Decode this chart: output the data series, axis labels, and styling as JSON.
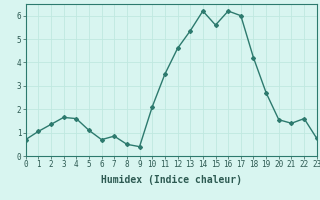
{
  "x": [
    0,
    1,
    2,
    3,
    4,
    5,
    6,
    7,
    8,
    9,
    10,
    11,
    12,
    13,
    14,
    15,
    16,
    17,
    18,
    19,
    20,
    21,
    22,
    23
  ],
  "y": [
    0.7,
    1.05,
    1.35,
    1.65,
    1.6,
    1.1,
    0.7,
    0.85,
    0.5,
    0.4,
    2.1,
    3.5,
    4.6,
    5.35,
    6.2,
    5.6,
    6.2,
    6.0,
    4.2,
    2.7,
    1.55,
    1.4,
    1.6,
    0.75
  ],
  "line_color": "#2d7a6e",
  "marker": "D",
  "marker_size": 2,
  "bg_color": "#d8f5f0",
  "grid_color": "#c0e8e0",
  "xlabel": "Humidex (Indice chaleur)",
  "xlim": [
    0,
    23
  ],
  "ylim": [
    0,
    6.5
  ],
  "xticks": [
    0,
    1,
    2,
    3,
    4,
    5,
    6,
    7,
    8,
    9,
    10,
    11,
    12,
    13,
    14,
    15,
    16,
    17,
    18,
    19,
    20,
    21,
    22,
    23
  ],
  "yticks": [
    0,
    1,
    2,
    3,
    4,
    5,
    6
  ],
  "tick_fontsize": 5.5,
  "label_fontsize": 7,
  "line_width": 1.0
}
